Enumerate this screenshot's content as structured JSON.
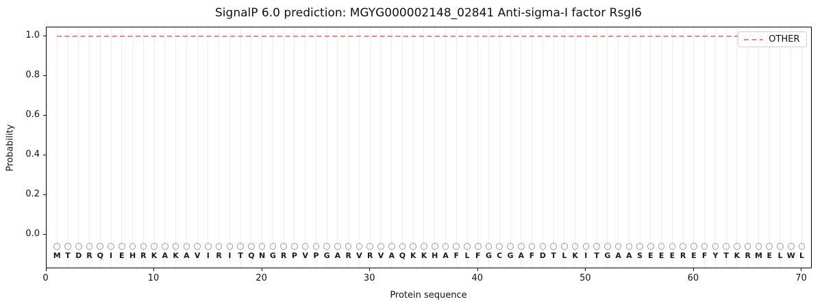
{
  "header": {
    "title": "SignalP 6.0 prediction: MGYG000002148_02841 Anti-sigma-I factor RsgI6"
  },
  "axes": {
    "xlabel": "Protein sequence",
    "ylabel": "Probability"
  },
  "legend": {
    "items": [
      {
        "label": "OTHER",
        "linestyle": "dashed",
        "color": "#f28383"
      }
    ],
    "position": "upper right"
  },
  "colors": {
    "other_line": "#f28383",
    "grid": "#ededed",
    "spine": "#000000",
    "marker_circle": "#9f9f9f",
    "letter": "#1c1c1c",
    "legend_border": "#cccccc",
    "background": "#ffffff"
  },
  "chart_data": {
    "type": "line",
    "title": "SignalP 6.0 prediction: MGYG000002148_02841 Anti-sigma-I factor RsgI6",
    "xlabel": "Protein sequence",
    "ylabel": "Probability",
    "xlim": [
      0,
      71
    ],
    "ylim": [
      -0.17,
      1.045
    ],
    "x_ticks": [
      0,
      10,
      20,
      30,
      40,
      50,
      60,
      70
    ],
    "y_ticks": [
      0.0,
      0.2,
      0.4,
      0.6,
      0.8,
      1.0
    ],
    "y_tick_labels": [
      "0.0",
      "0.2",
      "0.4",
      "0.6",
      "0.8",
      "1.0"
    ],
    "grid": "light vertical gridline at every residue position 1-70",
    "legend_position": "upper right",
    "sequence": "MTDRQIEHRKAKAVIRITQNGRPVPGARVRVAQKKHAFLFGCGAFDTLKITGAASEEEREFYTKRMELWL",
    "sequence_length": 70,
    "marker_row": {
      "symbol": "open-circle",
      "y": -0.06,
      "positions": "1-70"
    },
    "series": [
      {
        "name": "OTHER",
        "linestyle": "dashed",
        "color": "#f28383",
        "y_constant": 1.0,
        "x_start": 1,
        "x_end": 70
      }
    ]
  }
}
